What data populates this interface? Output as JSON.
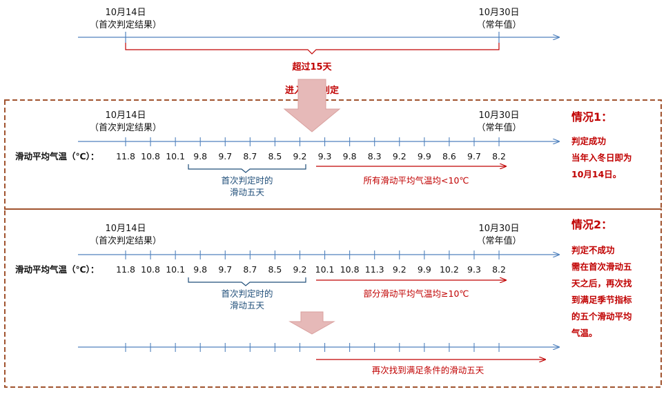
{
  "colors": {
    "axis": "#4f81bd",
    "accent_red": "#c00000",
    "frame": "#a0522d",
    "blue_text": "#1f4e79",
    "arrow_fill": "#e6b9b8"
  },
  "top": {
    "start_date": "10月14日",
    "start_note": "（首次判定结果）",
    "end_date": "10月30日",
    "end_note": "（常年值）",
    "gap_label": "超过15天",
    "enter_label": "进入二次判定"
  },
  "case1": {
    "title": "情况1：",
    "desc": [
      "判定成功",
      "当年入冬日即为",
      "10月14日。"
    ],
    "start_date": "10月14日",
    "start_note": "（首次判定结果）",
    "end_date": "10月30日",
    "end_note": "（常年值）",
    "row_label": "滑动平均气温（℃）：",
    "values": [
      "11.8",
      "10.8",
      "10.1",
      "9.8",
      "9.7",
      "8.7",
      "8.5",
      "9.2",
      "9.3",
      "9.8",
      "8.3",
      "9.2",
      "9.9",
      "8.6",
      "9.7",
      "8.2"
    ],
    "brace_label": [
      "首次判定时的",
      "滑动五天"
    ],
    "red_arrow_label": "所有滑动平均气温均<10℃"
  },
  "case2": {
    "title": "情况2：",
    "desc": [
      "判定不成功",
      "需在首次滑动五",
      "天之后，再次找",
      "到满足季节指标",
      "的五个滑动平均",
      "气温。"
    ],
    "start_date": "10月14日",
    "start_note": "（首次判定结果）",
    "end_date": "10月30日",
    "end_note": "（常年值）",
    "row_label": "滑动平均气温（℃）：",
    "values": [
      "11.8",
      "10.8",
      "10.1",
      "9.8",
      "9.7",
      "8.7",
      "8.5",
      "9.2",
      "10.1",
      "10.8",
      "11.3",
      "9.2",
      "9.9",
      "10.2",
      "9.3",
      "8.2"
    ],
    "brace_label": [
      "首次判定时的",
      "滑动五天"
    ],
    "red_arrow_label": "部分滑动平均气温均≥10℃",
    "bottom_label": "再次找到满足条件的滑动五天"
  }
}
